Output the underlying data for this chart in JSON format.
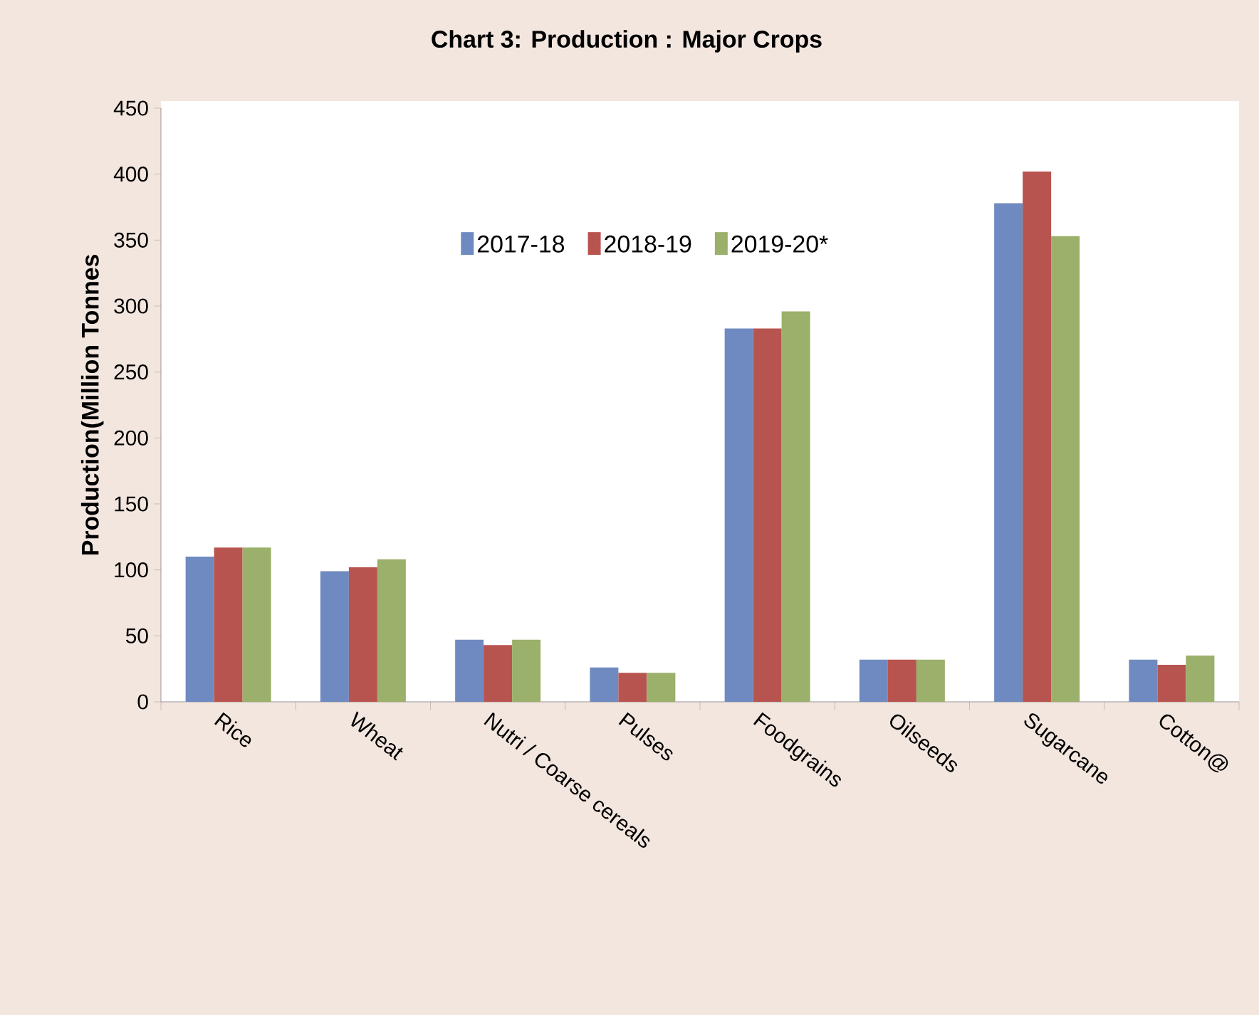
{
  "chart_data": {
    "type": "bar",
    "title": "Chart 3: Production : Major Crops",
    "ylabel": "Production(Million  Tonnes",
    "categories": [
      "Rice",
      "Wheat",
      "Nutri / Coarse cereals",
      "Pulses",
      "Foodgrains",
      "Oilseeds",
      "Sugarcane",
      "Cotton@"
    ],
    "series": [
      {
        "name": "2017-18",
        "color": "#6f8ac0",
        "values": [
          110,
          99,
          47,
          26,
          283,
          32,
          378,
          32
        ]
      },
      {
        "name": "2018-19",
        "color": "#b85450",
        "values": [
          117,
          102,
          43,
          22,
          283,
          32,
          402,
          28
        ]
      },
      {
        "name": "2019-20*",
        "color": "#9bb06a",
        "values": [
          117,
          108,
          47,
          22,
          296,
          32,
          353,
          35
        ]
      }
    ],
    "ylim": [
      0,
      450
    ],
    "yticks": [
      0,
      50,
      100,
      150,
      200,
      250,
      300,
      350,
      400,
      450
    ],
    "grid": false,
    "legend": "top"
  }
}
